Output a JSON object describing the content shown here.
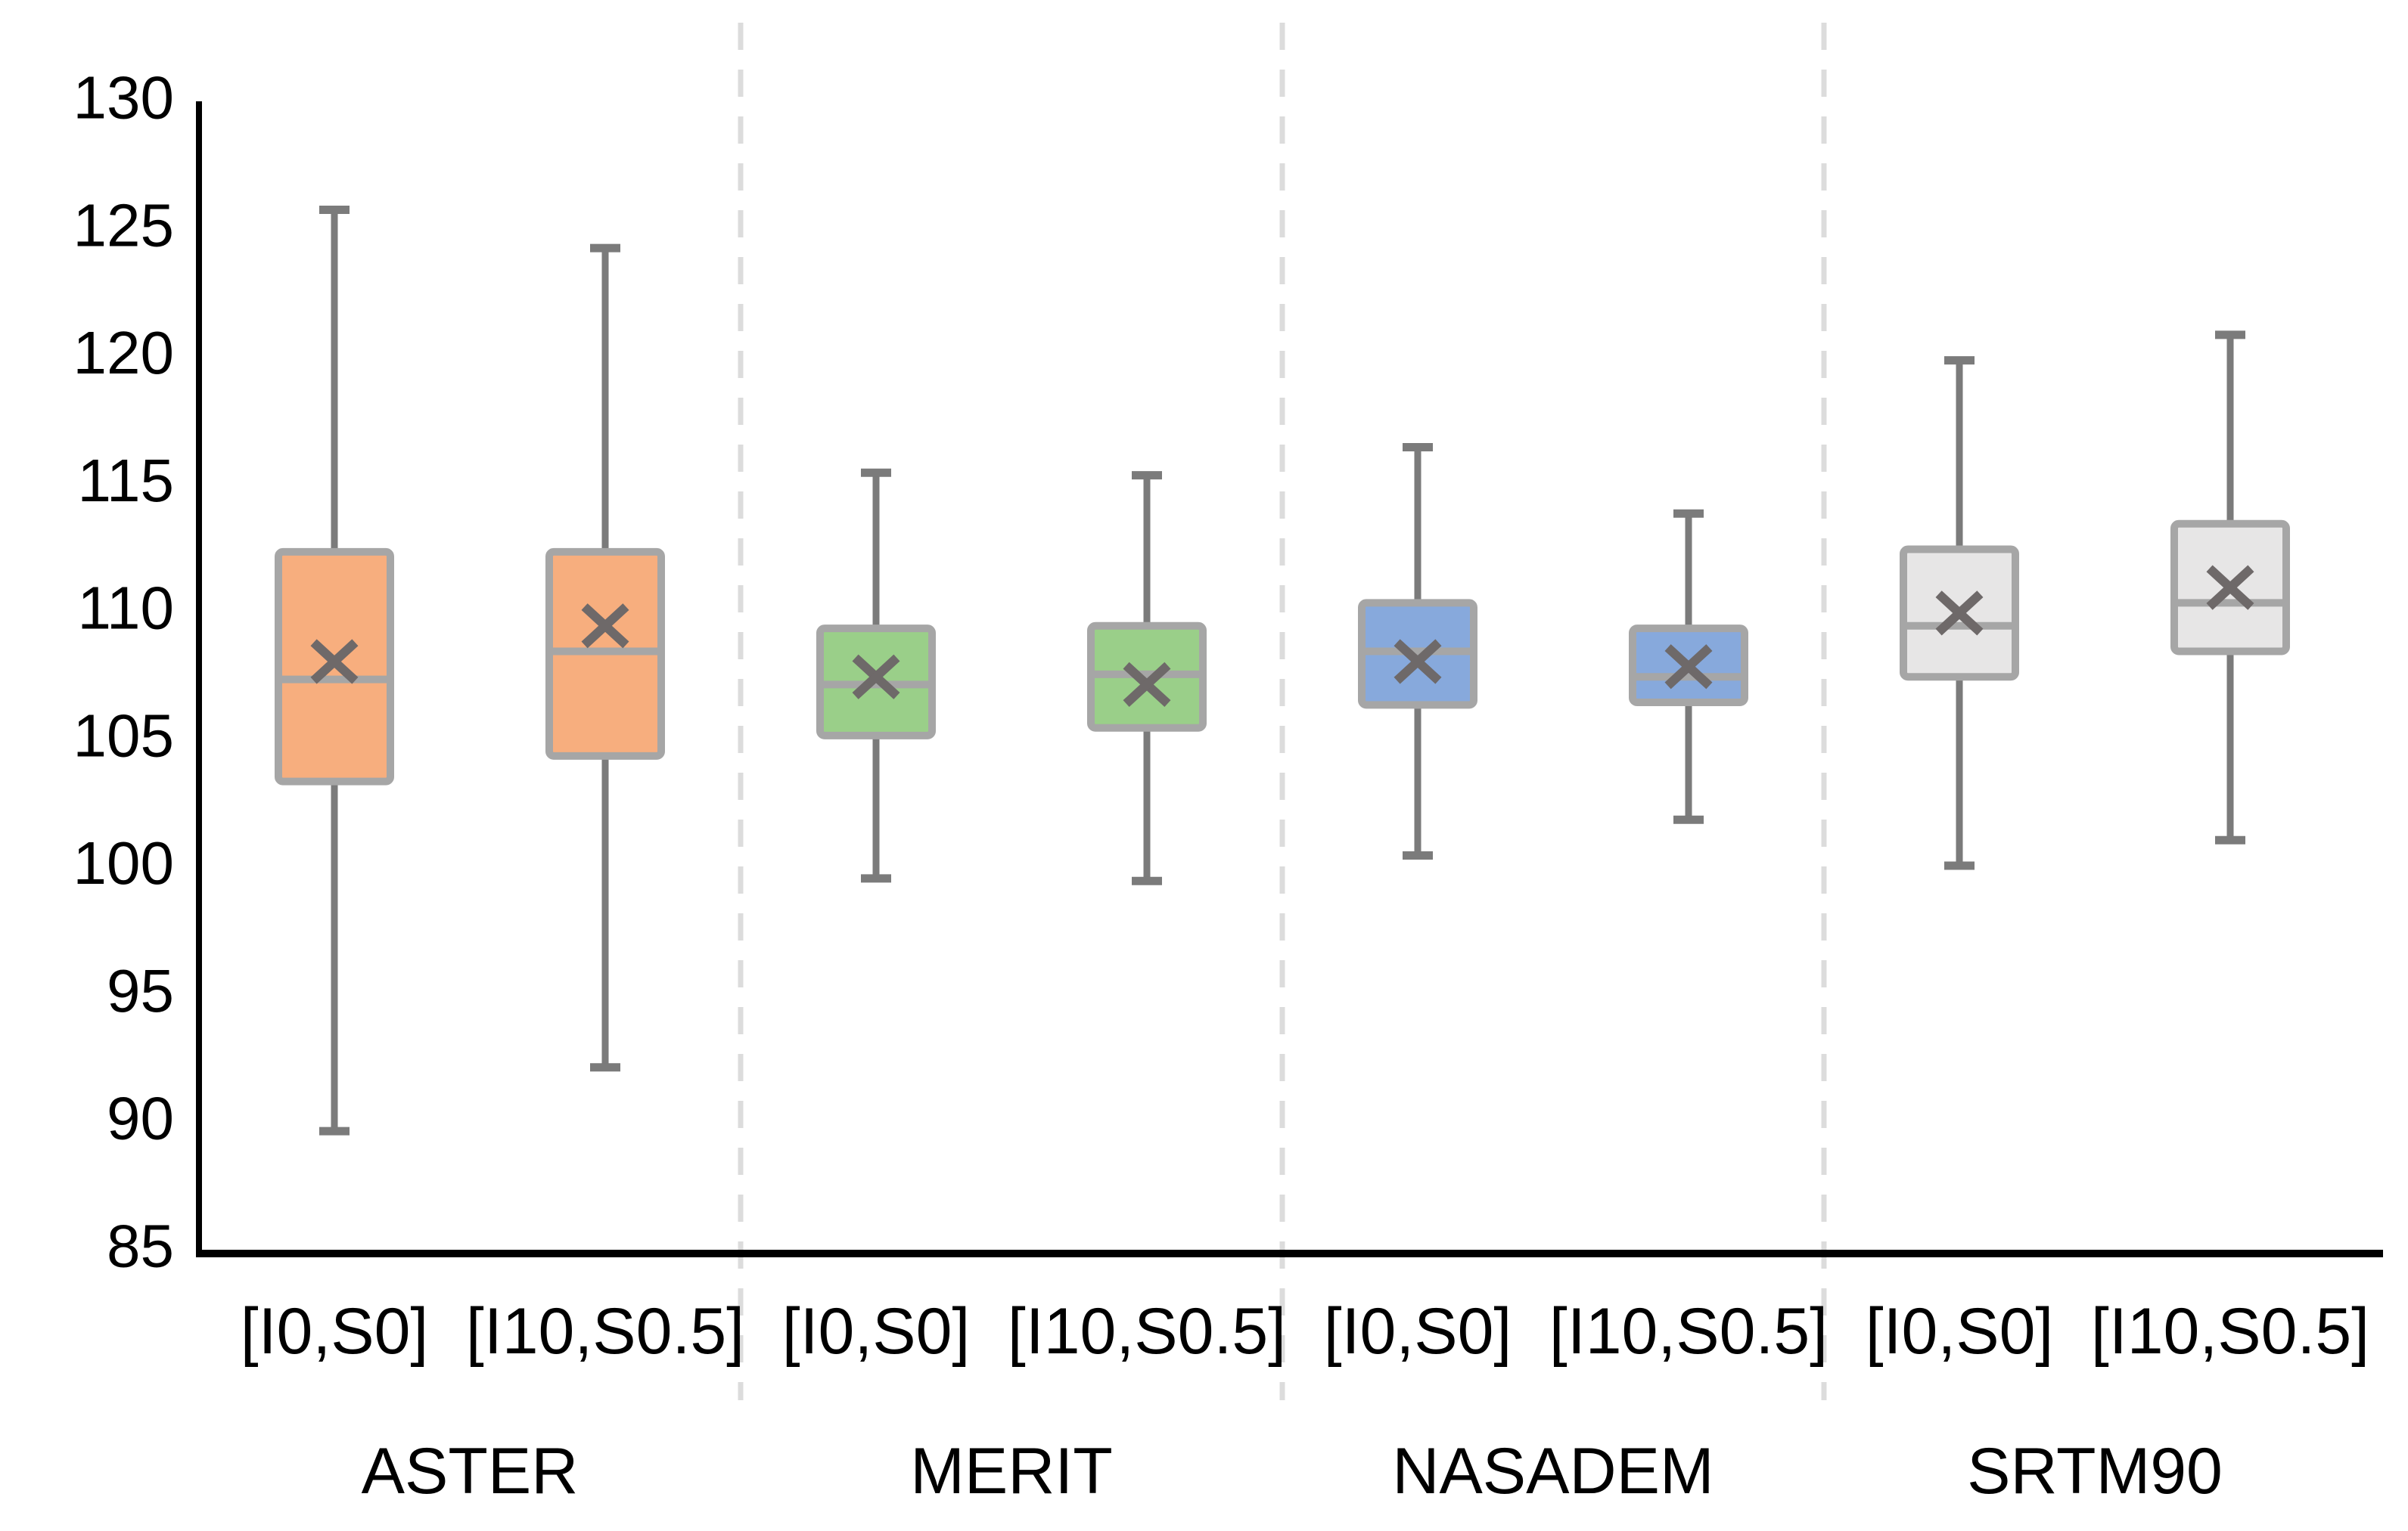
{
  "chart_data": {
    "type": "boxplot",
    "title": "",
    "xlabel": "",
    "ylabel": "",
    "ylim": [
      85,
      130
    ],
    "yticks": [
      85,
      90,
      95,
      100,
      105,
      110,
      115,
      120,
      125,
      130
    ],
    "grid": false,
    "legend": false,
    "group_separator_style": "dashed",
    "groups": [
      {
        "name": "ASTER",
        "color": "#F7AE7E",
        "boxes": [
          {
            "label": "[I0,S0]",
            "min": 89.5,
            "q1": 103.2,
            "median": 107.2,
            "mean": 107.9,
            "q3": 112.2,
            "max": 125.6
          },
          {
            "label": "[I10,S0.5]",
            "min": 92.0,
            "q1": 104.2,
            "median": 108.3,
            "mean": 109.3,
            "q3": 112.2,
            "max": 124.1
          }
        ]
      },
      {
        "name": "MERIT",
        "color": "#9ACF89",
        "boxes": [
          {
            "label": "[I0,S0]",
            "min": 99.4,
            "q1": 105.0,
            "median": 107.0,
            "mean": 107.3,
            "q3": 109.2,
            "max": 115.3
          },
          {
            "label": "[I10,S0.5]",
            "min": 99.3,
            "q1": 105.3,
            "median": 107.4,
            "mean": 107.0,
            "q3": 109.3,
            "max": 115.2
          }
        ]
      },
      {
        "name": "NASADEM",
        "color": "#87A9DC",
        "boxes": [
          {
            "label": "[I0,S0]",
            "min": 100.3,
            "q1": 106.2,
            "median": 108.3,
            "mean": 107.9,
            "q3": 110.2,
            "max": 116.3
          },
          {
            "label": "[I10,S0.5]",
            "min": 101.7,
            "q1": 106.3,
            "median": 107.3,
            "mean": 107.7,
            "q3": 109.2,
            "max": 113.7
          }
        ]
      },
      {
        "name": "SRTM90",
        "color": "#E7E6E6",
        "boxes": [
          {
            "label": "[I0,S0]",
            "min": 99.9,
            "q1": 107.3,
            "median": 109.3,
            "mean": 109.8,
            "q3": 112.3,
            "max": 119.7
          },
          {
            "label": "[I10,S0.5]",
            "min": 100.9,
            "q1": 108.3,
            "median": 110.2,
            "mean": 110.8,
            "q3": 113.3,
            "max": 120.7
          }
        ]
      }
    ],
    "styles": {
      "box_border_color": "#A6A6A6",
      "median_color": "#A6A6A6",
      "whisker_color": "#7B7B7B",
      "mean_marker_color": "#6E6969",
      "mean_marker": "x",
      "axis_color": "#000000",
      "separator_color": "#DCDCDC",
      "text_color": "#000000"
    }
  }
}
